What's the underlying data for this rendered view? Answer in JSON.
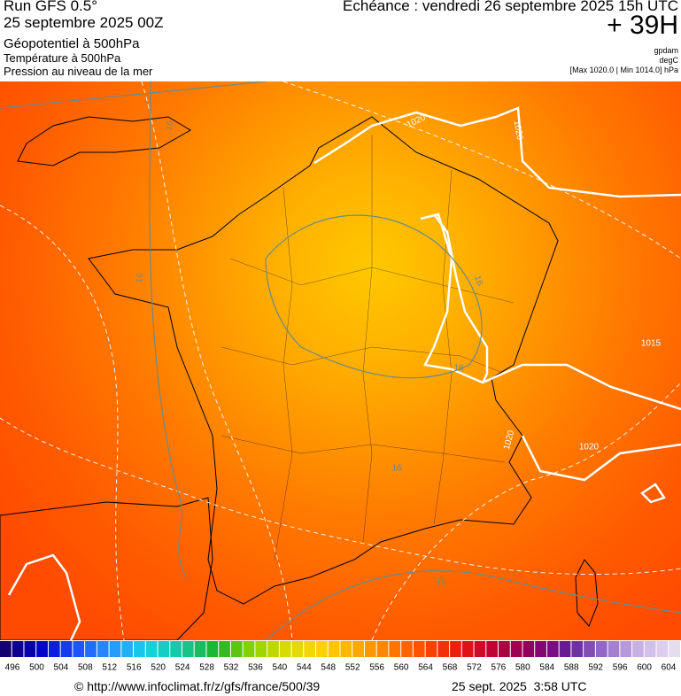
{
  "header": {
    "title": "Run GFS 0.5°",
    "run_date": "25 septembre 2025 00Z",
    "fields": [
      "Géopotentiel à 500hPa",
      "Température à 500hPa",
      "Pression au niveau de la mer"
    ],
    "echeance": "Echéance : vendredi 26 septembre 2025 15h UTC",
    "lead": "+ 39H",
    "units": [
      "gpdam",
      "degC",
      "[Max 1020.0 | Min 1014.0] hPa"
    ]
  },
  "map": {
    "contour_labels": [
      "1020",
      "1020",
      "1015",
      "1020",
      "1020",
      "16",
      "16",
      "16",
      "16",
      "16",
      "16"
    ]
  },
  "colorbar": {
    "labels": [
      496,
      500,
      504,
      508,
      512,
      516,
      520,
      524,
      528,
      532,
      536,
      540,
      544,
      548,
      552,
      556,
      560,
      564,
      568,
      572,
      576,
      580,
      584,
      588,
      592,
      596,
      600,
      604
    ]
  },
  "footer": {
    "url": "© http://www.infoclimat.fr/z/gfs/france/500/39",
    "timestamp": "25 sept. 2025  3:58 UTC"
  }
}
